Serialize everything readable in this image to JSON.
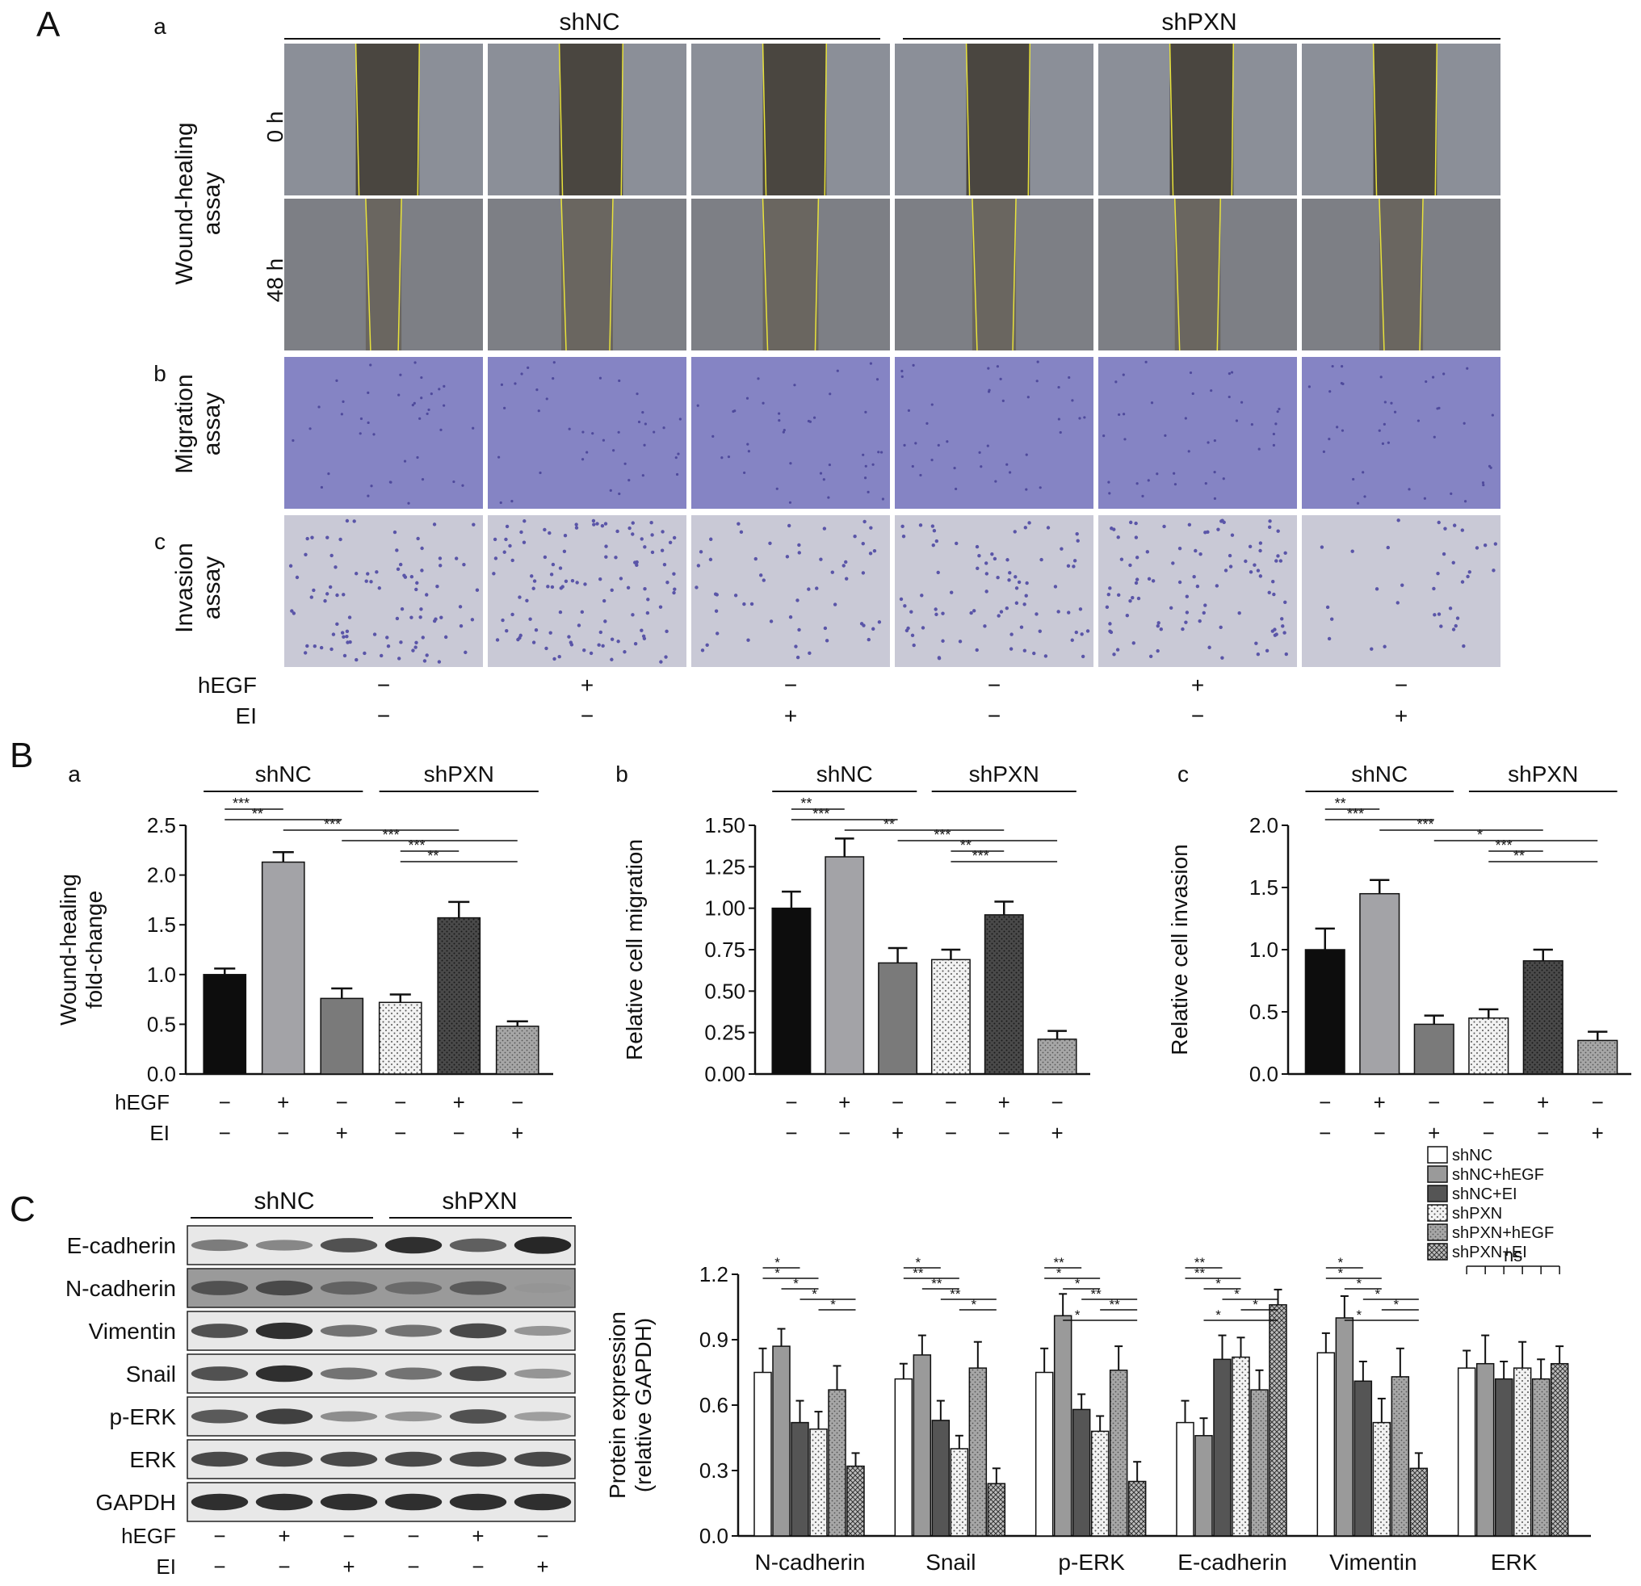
{
  "panel_labels": {
    "A": "A",
    "B": "B",
    "C": "C"
  },
  "panelA": {
    "sub_labels": [
      "a",
      "b",
      "c"
    ],
    "groups": [
      "shNC",
      "shPXN"
    ],
    "wound_title": "Wound-healing\nassay",
    "time_labels": [
      "0 h",
      "48 h"
    ],
    "migration_title": "Migration\nassay",
    "invasion_title": "Invasion\nassay",
    "treat_labels": [
      "hEGF",
      "EI"
    ],
    "hEGF_signs": [
      "−",
      "+",
      "−",
      "−",
      "+",
      "−"
    ],
    "EI_signs": [
      "−",
      "−",
      "+",
      "−",
      "−",
      "+"
    ]
  },
  "colors": {
    "wound_bg": "#8b8f98",
    "wound_gap": "#4a4640",
    "wound_edge": "#e8e23a",
    "migration_bg": "#8584c4",
    "invasion_bg": "#c9c9d6",
    "cell_dot": "#5a55a8"
  },
  "chart_data": [
    {
      "type": "bar",
      "panel": "a",
      "groups": [
        "shNC",
        "shPXN"
      ],
      "ylabel": "Wound-healing\nfold-change",
      "ylim": [
        0,
        2.5
      ],
      "yticks": [
        "0.0",
        "0.5",
        "1.0",
        "1.5",
        "2.0",
        "2.5"
      ],
      "values": [
        1.0,
        2.13,
        0.76,
        0.72,
        1.57,
        0.48
      ],
      "errors": [
        0.06,
        0.1,
        0.1,
        0.08,
        0.16,
        0.05
      ],
      "fills": [
        "black",
        "lightgray",
        "midgray",
        "dots-light",
        "dots-dark",
        "dots-gray"
      ],
      "hEGF": [
        "−",
        "+",
        "−",
        "−",
        "+",
        "−"
      ],
      "EI": [
        "−",
        "−",
        "+",
        "−",
        "−",
        "+"
      ],
      "treat_labels": [
        "hEGF",
        "EI"
      ],
      "sig": [
        {
          "from": 0,
          "to": 1,
          "label": "***",
          "level": 0
        },
        {
          "from": 0,
          "to": 2,
          "label": "**",
          "level": 1
        },
        {
          "from": 1,
          "to": 4,
          "label": "***",
          "level": 2
        },
        {
          "from": 2,
          "to": 5,
          "label": "***",
          "level": 3
        },
        {
          "from": 3,
          "to": 4,
          "label": "***",
          "level": 4
        },
        {
          "from": 3,
          "to": 5,
          "label": "**",
          "level": 5
        }
      ]
    },
    {
      "type": "bar",
      "panel": "b",
      "groups": [
        "shNC",
        "shPXN"
      ],
      "ylabel": "Relative cell migration",
      "ylim": [
        0,
        1.5
      ],
      "yticks": [
        "0.00",
        "0.25",
        "0.50",
        "0.75",
        "1.00",
        "1.25",
        "1.50"
      ],
      "values": [
        1.0,
        1.31,
        0.67,
        0.69,
        0.96,
        0.21
      ],
      "errors": [
        0.1,
        0.11,
        0.09,
        0.06,
        0.08,
        0.05
      ],
      "fills": [
        "black",
        "lightgray",
        "midgray",
        "dots-light",
        "dots-dark",
        "dots-gray"
      ],
      "hEGF": [
        "−",
        "+",
        "−",
        "−",
        "+",
        "−"
      ],
      "EI": [
        "−",
        "−",
        "+",
        "−",
        "−",
        "+"
      ],
      "sig": [
        {
          "from": 0,
          "to": 1,
          "label": "**",
          "level": 0
        },
        {
          "from": 0,
          "to": 2,
          "label": "***",
          "level": 1
        },
        {
          "from": 1,
          "to": 4,
          "label": "**",
          "level": 2
        },
        {
          "from": 2,
          "to": 5,
          "label": "***",
          "level": 3
        },
        {
          "from": 3,
          "to": 4,
          "label": "**",
          "level": 4
        },
        {
          "from": 3,
          "to": 5,
          "label": "***",
          "level": 5
        }
      ]
    },
    {
      "type": "bar",
      "panel": "c",
      "groups": [
        "shNC",
        "shPXN"
      ],
      "ylabel": "Relative cell invasion",
      "ylim": [
        0,
        2.0
      ],
      "yticks": [
        "0.0",
        "0.5",
        "1.0",
        "1.5",
        "2.0"
      ],
      "values": [
        1.0,
        1.45,
        0.4,
        0.45,
        0.91,
        0.27
      ],
      "errors": [
        0.17,
        0.11,
        0.07,
        0.07,
        0.09,
        0.07
      ],
      "fills": [
        "black",
        "lightgray",
        "midgray",
        "dots-light",
        "dots-dark",
        "dots-gray"
      ],
      "hEGF": [
        "−",
        "+",
        "−",
        "−",
        "+",
        "−"
      ],
      "EI": [
        "−",
        "−",
        "+",
        "−",
        "−",
        "+"
      ],
      "sig": [
        {
          "from": 0,
          "to": 1,
          "label": "**",
          "level": 0
        },
        {
          "from": 0,
          "to": 2,
          "label": "***",
          "level": 1
        },
        {
          "from": 1,
          "to": 4,
          "label": "***",
          "level": 2
        },
        {
          "from": 2,
          "to": 5,
          "label": "*",
          "level": 3
        },
        {
          "from": 3,
          "to": 4,
          "label": "***",
          "level": 4
        },
        {
          "from": 3,
          "to": 5,
          "label": "**",
          "level": 5
        }
      ]
    },
    {
      "type": "bar",
      "panel": "C",
      "ylabel": "Protein expression\n(relative GAPDH)",
      "ylim": [
        0,
        1.2
      ],
      "yticks": [
        "0.0",
        "0.3",
        "0.6",
        "0.9",
        "1.2"
      ],
      "categories": [
        "N-cadherin",
        "Snail",
        "p-ERK",
        "E-cadherin",
        "Vimentin",
        "ERK"
      ],
      "series": [
        {
          "name": "shNC",
          "fill": "white",
          "values": [
            0.75,
            0.72,
            0.75,
            0.52,
            0.84,
            0.77
          ],
          "errors": [
            0.11,
            0.07,
            0.11,
            0.1,
            0.09,
            0.08
          ]
        },
        {
          "name": "shNC+hEGF",
          "fill": "gray",
          "values": [
            0.87,
            0.83,
            1.01,
            0.46,
            1.0,
            0.79
          ],
          "errors": [
            0.08,
            0.09,
            0.1,
            0.08,
            0.1,
            0.13
          ]
        },
        {
          "name": "shNC+EI",
          "fill": "darkgray",
          "values": [
            0.52,
            0.53,
            0.58,
            0.81,
            0.71,
            0.72
          ],
          "errors": [
            0.1,
            0.09,
            0.07,
            0.11,
            0.09,
            0.08
          ]
        },
        {
          "name": "shPXN",
          "fill": "dots-light",
          "values": [
            0.49,
            0.4,
            0.48,
            0.82,
            0.52,
            0.77
          ],
          "errors": [
            0.08,
            0.06,
            0.07,
            0.09,
            0.11,
            0.12
          ]
        },
        {
          "name": "shPXN+hEGF",
          "fill": "dots-gray",
          "values": [
            0.67,
            0.77,
            0.76,
            0.67,
            0.73,
            0.72
          ],
          "errors": [
            0.11,
            0.12,
            0.11,
            0.09,
            0.13,
            0.09
          ]
        },
        {
          "name": "shPXN+EI",
          "fill": "crosshatch",
          "values": [
            0.32,
            0.24,
            0.25,
            1.06,
            0.31,
            0.79
          ],
          "errors": [
            0.06,
            0.07,
            0.09,
            0.07,
            0.07,
            0.08
          ]
        }
      ],
      "sig_labels": {
        "N-cadherin": [
          "*",
          "*",
          "*",
          "*",
          "*"
        ],
        "Snail": [
          "*",
          "**",
          "**",
          "**",
          "*"
        ],
        "p-ERK": [
          "**",
          "*",
          "*",
          "**",
          "**",
          "*"
        ],
        "E-cadherin": [
          "**",
          "**",
          "*",
          "*",
          "*",
          "*"
        ],
        "Vimentin": [
          "*",
          "*",
          "*",
          "*",
          "*",
          "*"
        ],
        "ERK": [
          "ns"
        ]
      }
    }
  ],
  "panelC_blot": {
    "groups": [
      "shNC",
      "shPXN"
    ],
    "proteins": [
      "E-cadherin",
      "N-cadherin",
      "Vimentin",
      "Snail",
      "p-ERK",
      "ERK",
      "GAPDH"
    ],
    "intensities": [
      [
        0.45,
        0.38,
        0.7,
        0.9,
        0.62,
        0.95
      ],
      [
        0.7,
        0.75,
        0.6,
        0.55,
        0.65,
        0.3
      ],
      [
        0.7,
        0.9,
        0.5,
        0.5,
        0.75,
        0.3
      ],
      [
        0.7,
        0.9,
        0.5,
        0.5,
        0.75,
        0.3
      ],
      [
        0.65,
        0.8,
        0.35,
        0.3,
        0.7,
        0.25
      ],
      [
        0.75,
        0.75,
        0.75,
        0.75,
        0.75,
        0.75
      ],
      [
        0.9,
        0.9,
        0.9,
        0.9,
        0.9,
        0.9
      ]
    ],
    "treat_labels": [
      "hEGF",
      "EI"
    ],
    "hEGF_signs": [
      "−",
      "+",
      "−",
      "−",
      "+",
      "−"
    ],
    "EI_signs": [
      "−",
      "−",
      "+",
      "−",
      "−",
      "+"
    ]
  }
}
